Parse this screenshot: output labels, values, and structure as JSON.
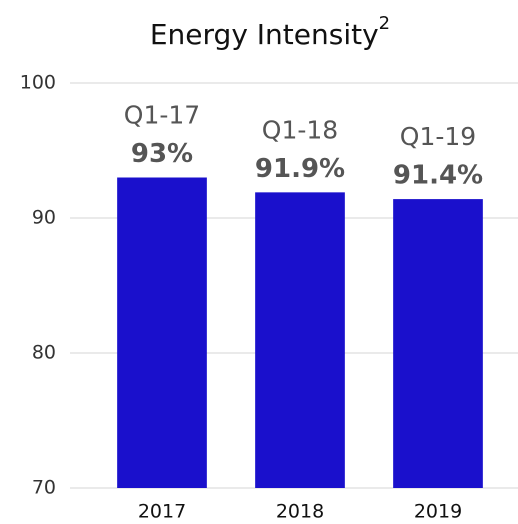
{
  "chart_data": {
    "type": "bar",
    "title": "Energy Intensity",
    "title_superscript": "2",
    "categories": [
      "2017",
      "2018",
      "2019"
    ],
    "annotations": [
      "Q1-17",
      "Q1-18",
      "Q1-19"
    ],
    "values": [
      93,
      91.9,
      91.4
    ],
    "value_labels": [
      "93%",
      "91.9%",
      "91.4%"
    ],
    "color": "#1a10cc",
    "ylim": [
      70,
      100
    ],
    "yticks": [
      70,
      80,
      90,
      100
    ],
    "grid": true
  }
}
